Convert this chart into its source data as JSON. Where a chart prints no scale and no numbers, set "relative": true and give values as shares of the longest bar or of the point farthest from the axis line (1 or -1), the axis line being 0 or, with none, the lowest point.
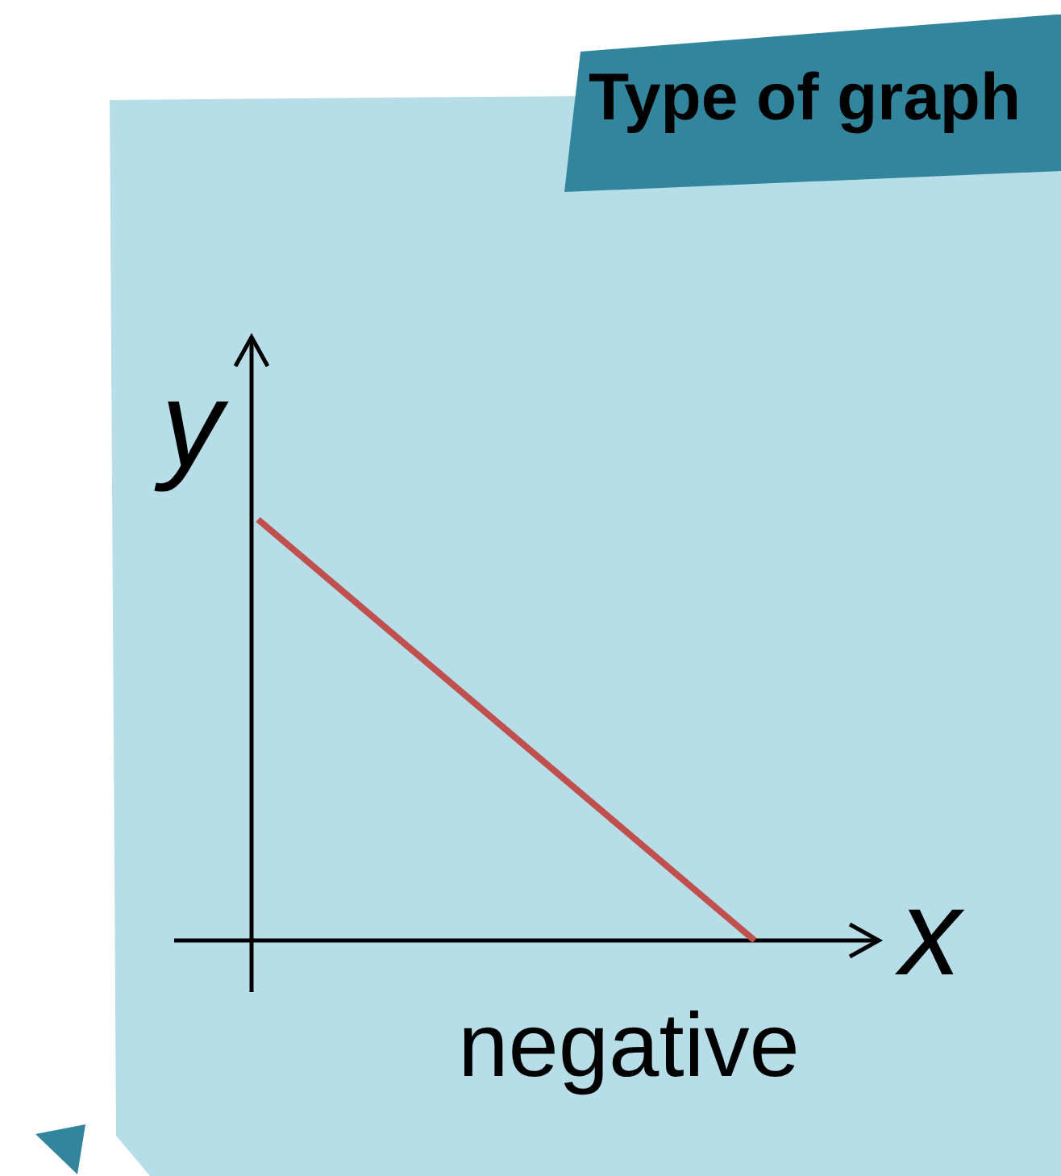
{
  "chart_data": {
    "type": "line",
    "title": "Type of graph",
    "xlabel": "x",
    "ylabel": "y",
    "annotations": [
      "negative"
    ],
    "categories": [
      null,
      null
    ],
    "series": [
      {
        "color": "#c0504d",
        "values": [
          1,
          0
        ]
      }
    ],
    "relative": true,
    "legend": false
  }
}
